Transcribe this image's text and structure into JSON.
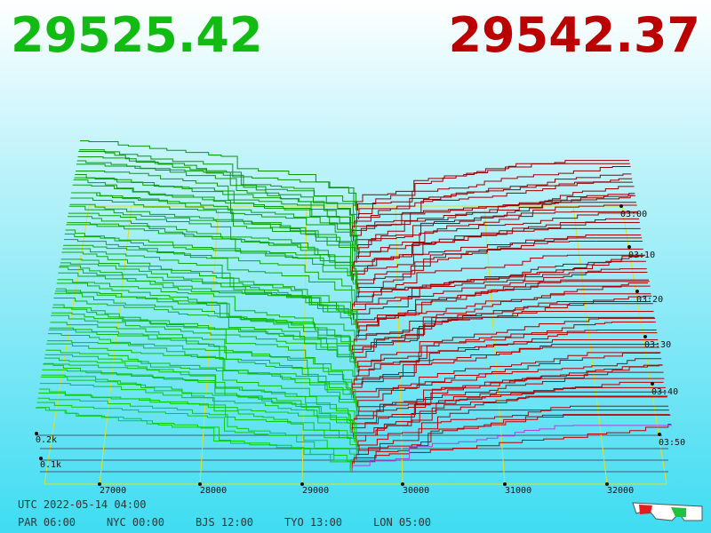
{
  "bid": "29525.42",
  "ask": "29542.37",
  "price_axis": [
    "27000",
    "28000",
    "29000",
    "30000",
    "31000",
    "32000"
  ],
  "depth_axis": [
    "0.2k",
    "0.1k"
  ],
  "time_axis": [
    "03:00",
    "03:10",
    "03:20",
    "03:30",
    "03:40",
    "03:50"
  ],
  "clock": {
    "utc": "UTC 2022-05-14 04:00",
    "cities": [
      "PAR 06:00",
      "NYC 00:00",
      "BJS 12:00",
      "TYO 13:00",
      "LON 05:00"
    ]
  }
}
